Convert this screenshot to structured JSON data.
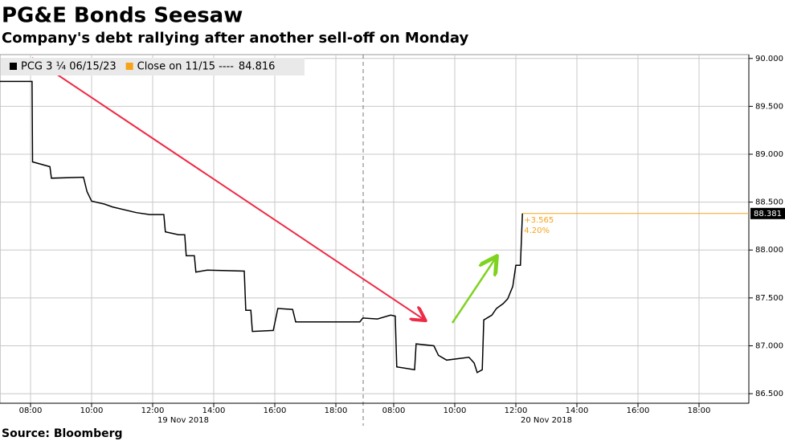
{
  "chart_data": {
    "type": "line",
    "title": "PG&E Bonds Seesaw",
    "subtitle": "Company's debt rallying after another sell-off on Monday",
    "source": "Source: Bloomberg",
    "x": [
      "2018-11-19 07:00",
      "2018-11-19 08:03",
      "2018-11-19 08:04",
      "2018-11-19 08:38",
      "2018-11-19 08:41",
      "2018-11-19 09:44",
      "2018-11-19 09:51",
      "2018-11-19 10:00",
      "2018-11-19 10:25",
      "2018-11-19 10:41",
      "2018-11-19 11:28",
      "2018-11-19 11:54",
      "2018-11-19 12:22",
      "2018-11-19 12:25",
      "2018-11-19 12:51",
      "2018-11-19 13:03",
      "2018-11-19 13:06",
      "2018-11-19 13:22",
      "2018-11-19 13:25",
      "2018-11-19 13:47",
      "2018-11-19 15:00",
      "2018-11-19 15:03",
      "2018-11-19 15:13",
      "2018-11-19 15:16",
      "2018-11-19 15:57",
      "2018-11-19 16:06",
      "2018-11-19 16:35",
      "2018-11-19 16:41",
      "2018-11-19 18:47",
      "2018-11-19 18:53",
      "2018-11-20 07:28",
      "2018-11-20 07:54",
      "2018-11-20 08:03",
      "2018-11-20 08:06",
      "2018-11-20 08:41",
      "2018-11-20 08:44",
      "2018-11-20 09:19",
      "2018-11-20 09:28",
      "2018-11-20 09:44",
      "2018-11-20 10:28",
      "2018-11-20 10:38",
      "2018-11-20 10:44",
      "2018-11-20 10:54",
      "2018-11-20 10:57",
      "2018-11-20 11:13",
      "2018-11-20 11:22",
      "2018-11-20 11:35",
      "2018-11-20 11:44",
      "2018-11-20 11:54",
      "2018-11-20 12:00",
      "2018-11-20 12:09",
      "2018-11-20 12:13"
    ],
    "series": [
      {
        "name": "PCG 3 ¼ 06/15/23",
        "color": "#000000",
        "values": [
          89.76,
          89.76,
          88.92,
          88.87,
          88.75,
          88.76,
          88.61,
          88.51,
          88.48,
          88.45,
          88.39,
          88.37,
          88.37,
          88.19,
          88.16,
          88.16,
          87.94,
          87.94,
          87.77,
          87.79,
          87.78,
          87.37,
          87.37,
          87.15,
          87.16,
          87.39,
          87.38,
          87.25,
          87.25,
          87.29,
          87.28,
          87.32,
          87.31,
          86.78,
          86.75,
          87.02,
          87.0,
          86.9,
          86.85,
          86.88,
          86.82,
          86.72,
          86.75,
          87.27,
          87.32,
          87.39,
          87.44,
          87.49,
          87.62,
          87.84,
          87.84,
          88.381
        ]
      }
    ],
    "close_legend": {
      "name": "Close on 11/15 ----",
      "value": 84.816,
      "color": "#f7a21b"
    },
    "last_price": {
      "value": 88.381,
      "color": "#f7a21b"
    },
    "change_label": "+3.565",
    "change_pct_label": "4.20%",
    "ylim": [
      86.4,
      90.04
    ],
    "yticks": [
      {
        "value": 86.5,
        "label": "86.500"
      },
      {
        "value": 87,
        "label": "87.000"
      },
      {
        "value": 87.5,
        "label": "87.500"
      },
      {
        "value": 88,
        "label": "88.000"
      },
      {
        "value": 88.5,
        "label": "88.500"
      },
      {
        "value": 89,
        "label": "89.000"
      },
      {
        "value": 89.5,
        "label": "89.500"
      },
      {
        "value": 90,
        "label": "90.000"
      }
    ],
    "xticks": [
      {
        "value": "2018-11-19 08:00",
        "label": "08:00"
      },
      {
        "value": "2018-11-19 10:00",
        "label": "10:00"
      },
      {
        "value": "2018-11-19 12:00",
        "label": "12:00"
      },
      {
        "value": "2018-11-19 14:00",
        "label": "14:00"
      },
      {
        "value": "2018-11-19 16:00",
        "label": "16:00"
      },
      {
        "value": "2018-11-19 18:00",
        "label": "18:00"
      },
      {
        "value": "2018-11-20 08:00",
        "label": "08:00"
      },
      {
        "value": "2018-11-20 10:00",
        "label": "10:00"
      },
      {
        "value": "2018-11-20 12:00",
        "label": "12:00"
      },
      {
        "value": "2018-11-20 14:00",
        "label": "14:00"
      },
      {
        "value": "2018-11-20 16:00",
        "label": "16:00"
      },
      {
        "value": "2018-11-20 18:00",
        "label": "18:00"
      }
    ],
    "day_labels": [
      {
        "value": "2018-11-19 13:00",
        "label": "19 Nov 2018"
      },
      {
        "value": "2018-11-20 13:00",
        "label": "20 Nov 2018"
      }
    ],
    "grid": true
  }
}
